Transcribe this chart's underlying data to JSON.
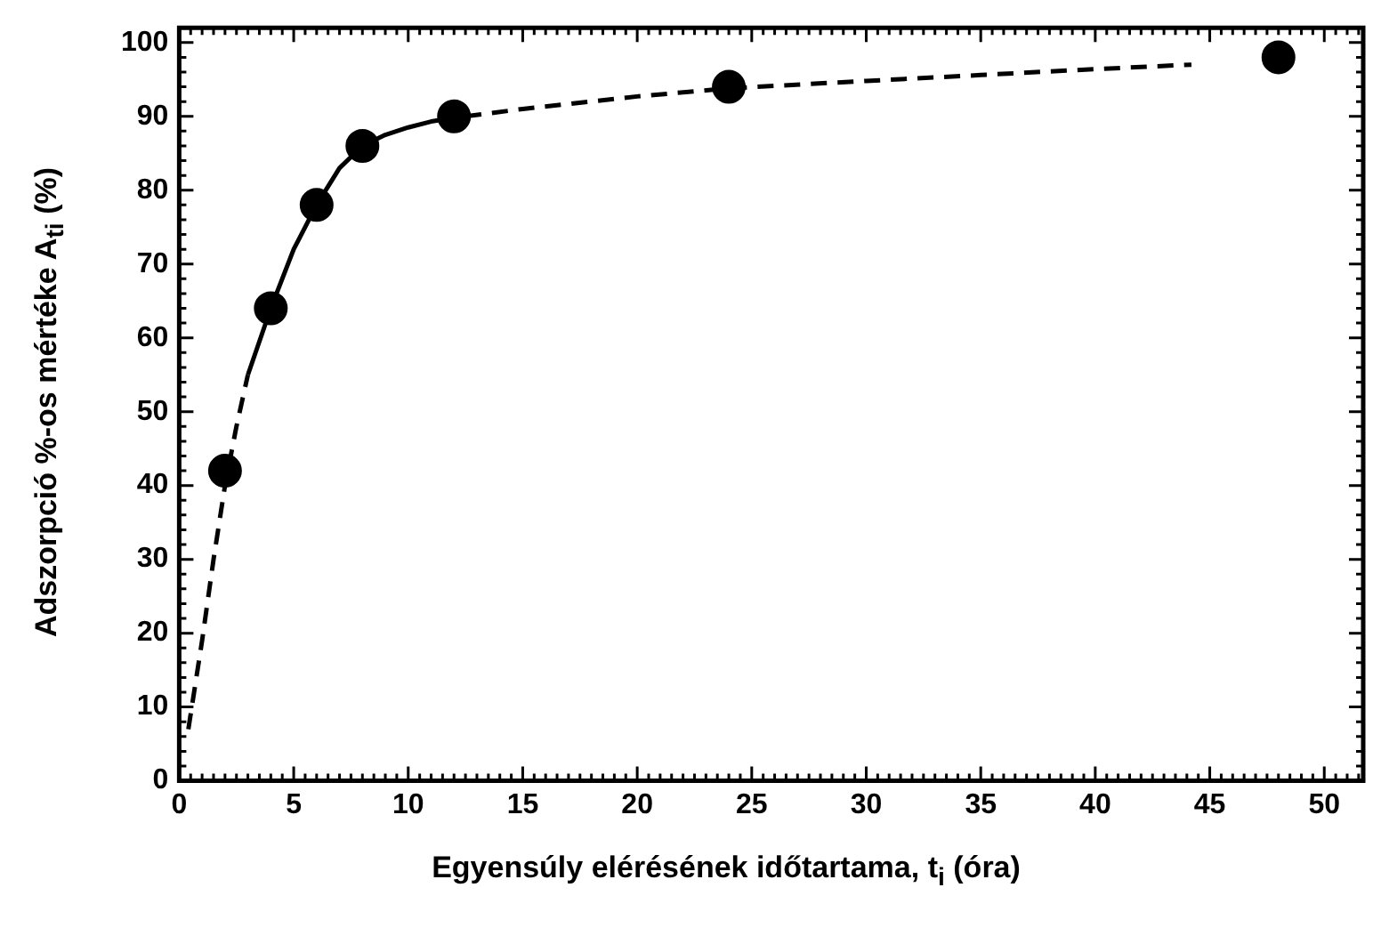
{
  "chart_data": {
    "type": "scatter",
    "xlabel": "Egyensúly elérésének időtartama, t$_{i}$ (óra)",
    "ylabel": "Adszorpció %-os mértéke A$_{ti}$ (%)",
    "xlim": [
      0,
      51.7
    ],
    "ylim": [
      0,
      102
    ],
    "xticks": [
      0,
      5,
      10,
      15,
      20,
      25,
      30,
      35,
      40,
      45,
      50
    ],
    "yticks": [
      0,
      10,
      20,
      30,
      40,
      50,
      60,
      70,
      80,
      90,
      100
    ],
    "grid": false,
    "legend": false,
    "series": [
      {
        "marker": "circle",
        "color": "#000000",
        "x": [
          2,
          4,
          6,
          8,
          12,
          24,
          48
        ],
        "values": [
          42,
          64,
          78,
          86,
          90,
          94,
          98
        ]
      },
      {
        "type": "line",
        "marker": "none",
        "line_style": "dashed",
        "color": "#000000",
        "x": [
          0.4,
          1,
          1.5,
          2,
          2.5,
          3
        ],
        "values": [
          7,
          19,
          30,
          40,
          48,
          55
        ]
      },
      {
        "type": "line",
        "marker": "none",
        "line_style": "solid",
        "color": "#000000",
        "x": [
          3,
          4,
          5,
          6,
          7,
          8,
          9,
          10,
          11,
          12,
          12.5
        ],
        "values": [
          55,
          64,
          72,
          78,
          83,
          86,
          87.5,
          88.5,
          89.3,
          89.8,
          90
        ]
      },
      {
        "type": "line",
        "marker": "none",
        "line_style": "dashed",
        "color": "#000000",
        "x": [
          12.5,
          15,
          20,
          24,
          30,
          35,
          40,
          44.2
        ],
        "values": [
          90,
          91,
          92.7,
          93.8,
          94.8,
          95.6,
          96.4,
          97
        ]
      }
    ]
  }
}
